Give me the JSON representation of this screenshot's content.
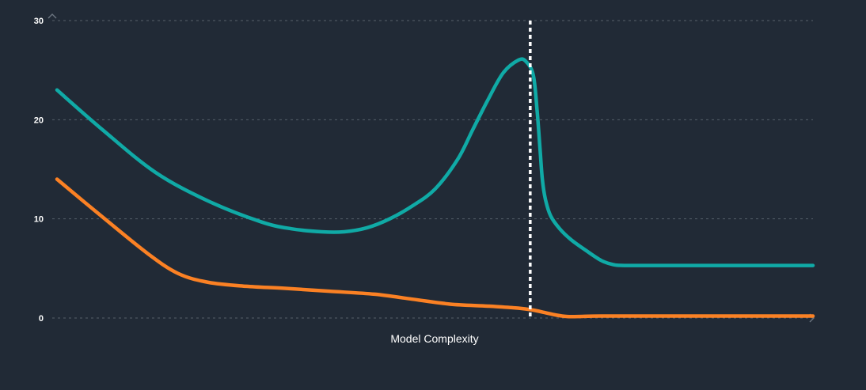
{
  "chart_data": {
    "type": "line",
    "title": "",
    "xlabel": "Model Complexity",
    "ylabel": "",
    "xlim": [
      0,
      100
    ],
    "ylim": [
      0,
      30
    ],
    "yticks": [
      0,
      10,
      20,
      30
    ],
    "grid": true,
    "legend": "none",
    "vertical_marker_x": 62.6,
    "series": [
      {
        "color": "#10aaa6",
        "x": [
          0,
          6,
          13,
          20,
          27,
          31,
          35,
          38,
          41,
          44,
          47,
          50,
          53,
          55,
          57,
          59,
          61,
          62,
          63,
          63.5,
          63.9,
          64.2,
          64.6,
          65.3,
          66.5,
          68,
          70,
          72,
          73.5,
          75,
          80,
          90,
          100
        ],
        "values": [
          23,
          19,
          14.7,
          11.8,
          9.7,
          9.0,
          8.7,
          8.7,
          9.1,
          10.0,
          11.3,
          13.0,
          16.0,
          19.0,
          22.0,
          24.7,
          26.0,
          25.9,
          24.5,
          21.0,
          17.0,
          14.0,
          12.0,
          10.3,
          9.0,
          7.9,
          6.8,
          5.8,
          5.4,
          5.3,
          5.3,
          5.3,
          5.3
        ]
      },
      {
        "color": "#fb8124",
        "x": [
          0,
          6,
          12,
          16,
          20,
          25,
          30,
          36,
          42,
          47,
          52,
          57,
          61,
          63,
          64.5,
          66,
          67.5,
          69,
          72,
          80,
          90,
          100
        ],
        "values": [
          14,
          10.2,
          6.5,
          4.5,
          3.6,
          3.2,
          3.0,
          2.7,
          2.4,
          1.9,
          1.4,
          1.2,
          1.0,
          0.8,
          0.55,
          0.3,
          0.15,
          0.15,
          0.2,
          0.2,
          0.2,
          0.2
        ]
      }
    ]
  }
}
